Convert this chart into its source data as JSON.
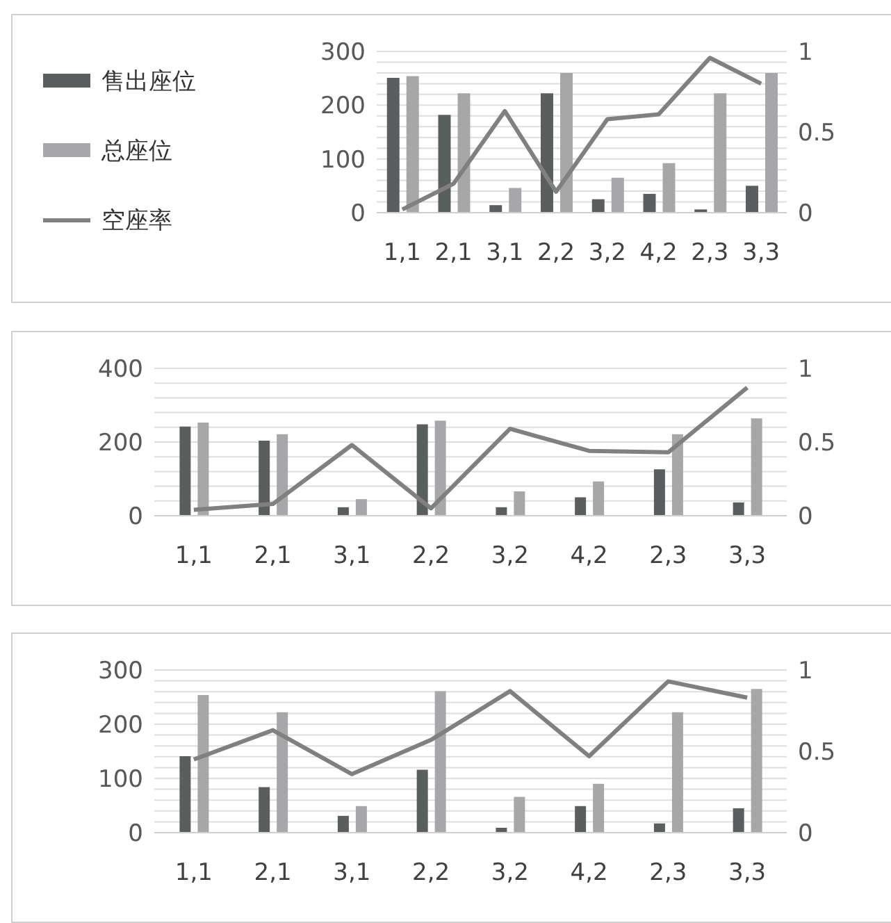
{
  "chart_data": [
    {
      "type": "bar",
      "categories": [
        "1,1",
        "2,1",
        "3,1",
        "2,2",
        "3,2",
        "4,2",
        "2,3",
        "3,3"
      ],
      "series": [
        {
          "name": "售出座位",
          "color": "#5a5e5e",
          "values": [
            251,
            182,
            14,
            222,
            25,
            35,
            6,
            50
          ]
        },
        {
          "name": "总座位",
          "color": "#a7a7aa",
          "values": [
            254,
            222,
            46,
            260,
            65,
            92,
            222,
            260
          ]
        },
        {
          "name": "空座率",
          "type": "line",
          "axis": "y2",
          "color": "#808080",
          "values": [
            0.02,
            0.18,
            0.63,
            0.13,
            0.58,
            0.61,
            0.96,
            0.8
          ]
        }
      ],
      "ylim": [
        0,
        300
      ],
      "yticks": [
        0,
        {
          "value": 20,
          "label": null
        },
        {
          "value": 40,
          "label": null
        },
        {
          "value": 60,
          "label": null
        },
        {
          "value": 80,
          "label": null
        },
        100,
        {
          "value": 120,
          "label": null
        },
        {
          "value": 140,
          "label": null
        },
        {
          "value": 160,
          "label": null
        },
        {
          "value": 180,
          "label": null
        },
        200,
        {
          "value": 220,
          "label": null
        },
        {
          "value": 240,
          "label": null
        },
        {
          "value": 260,
          "label": null
        },
        {
          "value": 280,
          "label": null
        },
        300
      ],
      "y2lim": [
        0,
        1
      ],
      "y2ticks": [
        0,
        0.5,
        1
      ],
      "grid": "y",
      "legend": "left",
      "marker": "none"
    },
    {
      "type": "bar",
      "categories": [
        "1,1",
        "2,1",
        "3,1",
        "2,2",
        "3,2",
        "4,2",
        "2,3",
        "3,3"
      ],
      "series": [
        {
          "color": "#5a5e5e",
          "values": [
            242,
            204,
            23,
            248,
            23,
            50,
            126,
            36
          ]
        },
        {
          "color": "#a7a7aa",
          "values": [
            253,
            221,
            45,
            258,
            66,
            93,
            221,
            264
          ]
        },
        {
          "type": "line",
          "axis": "y2",
          "color": "#808080",
          "values": [
            0.04,
            0.08,
            0.48,
            0.05,
            0.59,
            0.44,
            0.43,
            0.87
          ]
        }
      ],
      "ylim": [
        0,
        400
      ],
      "yticks": [
        0,
        {
          "value": 40,
          "label": null
        },
        {
          "value": 80,
          "label": null
        },
        {
          "value": 120,
          "label": null
        },
        {
          "value": 160,
          "label": null
        },
        200,
        {
          "value": 240,
          "label": null
        },
        {
          "value": 280,
          "label": null
        },
        {
          "value": 320,
          "label": null
        },
        {
          "value": 360,
          "label": null
        },
        400
      ],
      "y2lim": [
        0,
        1
      ],
      "y2ticks": [
        0,
        0.5,
        1
      ],
      "grid": "y",
      "marker": "none"
    },
    {
      "type": "bar",
      "categories": [
        "1,1",
        "2,1",
        "3,1",
        "2,2",
        "3,2",
        "4,2",
        "2,3",
        "3,3"
      ],
      "series": [
        {
          "color": "#5a5e5e",
          "values": [
            141,
            84,
            31,
            116,
            9,
            49,
            17,
            45
          ]
        },
        {
          "color": "#a7a7aa",
          "values": [
            254,
            222,
            49,
            261,
            66,
            90,
            222,
            265
          ]
        },
        {
          "type": "line",
          "axis": "y2",
          "color": "#808080",
          "values": [
            0.45,
            0.63,
            0.36,
            0.57,
            0.87,
            0.47,
            0.93,
            0.83
          ]
        }
      ],
      "ylim": [
        0,
        300
      ],
      "yticks": [
        0,
        {
          "value": 20,
          "label": null
        },
        {
          "value": 40,
          "label": null
        },
        {
          "value": 60,
          "label": null
        },
        {
          "value": 80,
          "label": null
        },
        100,
        {
          "value": 120,
          "label": null
        },
        {
          "value": 140,
          "label": null
        },
        {
          "value": 160,
          "label": null
        },
        {
          "value": 180,
          "label": null
        },
        200,
        {
          "value": 220,
          "label": null
        },
        {
          "value": 240,
          "label": null
        },
        {
          "value": 260,
          "label": null
        },
        {
          "value": 280,
          "label": null
        },
        300
      ],
      "y2lim": [
        0,
        1
      ],
      "y2ticks": [
        0,
        0.5,
        1
      ],
      "grid": "y",
      "marker": "none"
    }
  ]
}
